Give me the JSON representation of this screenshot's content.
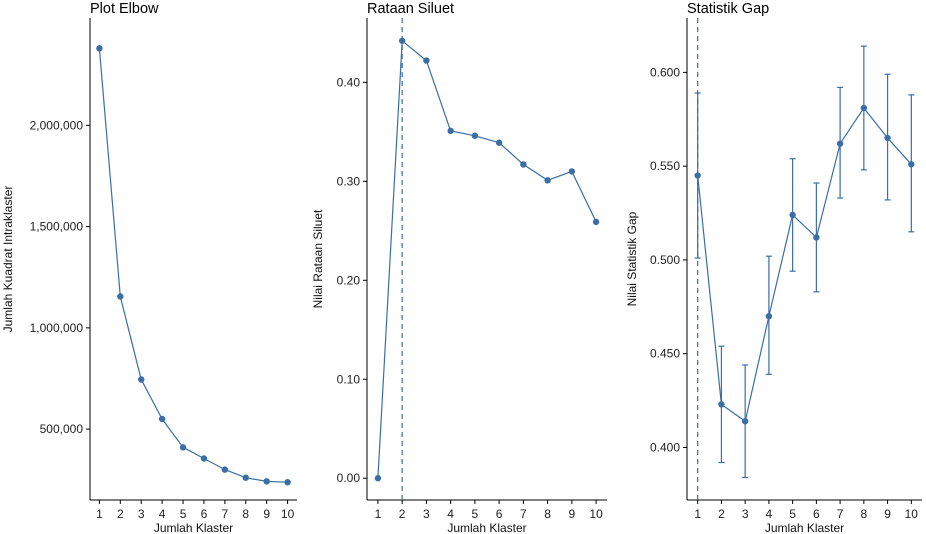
{
  "colors": {
    "series": "#3a6ea5",
    "axis": "#000000",
    "background": "#ffffff"
  },
  "chart_data": [
    {
      "type": "line",
      "title": "Plot Elbow",
      "xlabel": "Jumlah Klaster",
      "ylabel": "Jumlah Kuadrat Intraklaster",
      "x": [
        1,
        2,
        3,
        4,
        5,
        6,
        7,
        8,
        9,
        10
      ],
      "values": [
        2380000,
        1155000,
        745000,
        550000,
        410000,
        355000,
        300000,
        260000,
        242000,
        238000
      ],
      "xlim": [
        0.55,
        10.45
      ],
      "ylim": [
        150000,
        2530000
      ],
      "xticks": [
        1,
        2,
        3,
        4,
        5,
        6,
        7,
        8,
        9,
        10
      ],
      "xtick_labels": [
        "1",
        "2",
        "3",
        "4",
        "5",
        "6",
        "7",
        "8",
        "9",
        "10"
      ],
      "yticks": [
        500000,
        1000000,
        1500000,
        2000000
      ],
      "ytick_labels": [
        "500,000",
        "1,000,000",
        "1,500,000",
        "2,000,000"
      ],
      "vline": null,
      "error_bars": null,
      "grid": false
    },
    {
      "type": "line",
      "title": "Rataan Siluet",
      "xlabel": "Jumlah Klaster",
      "ylabel": "Nilai Rataan Siluet",
      "x": [
        1,
        2,
        3,
        4,
        5,
        6,
        7,
        8,
        9,
        10
      ],
      "values": [
        0.0,
        0.442,
        0.422,
        0.351,
        0.346,
        0.339,
        0.317,
        0.301,
        0.31,
        0.259
      ],
      "xlim": [
        0.55,
        10.45
      ],
      "ylim": [
        -0.022,
        0.465
      ],
      "xticks": [
        1,
        2,
        3,
        4,
        5,
        6,
        7,
        8,
        9,
        10
      ],
      "xtick_labels": [
        "1",
        "2",
        "3",
        "4",
        "5",
        "6",
        "7",
        "8",
        "9",
        "10"
      ],
      "yticks": [
        0.0,
        0.1,
        0.2,
        0.3,
        0.4
      ],
      "ytick_labels": [
        "0.00",
        "0.10",
        "0.20",
        "0.30",
        "0.40"
      ],
      "vline": 2,
      "error_bars": null,
      "grid": false
    },
    {
      "type": "line",
      "title": "Statistik Gap",
      "xlabel": "Jumlah Klaster",
      "ylabel": "Nilai Statistik Gap",
      "x": [
        1,
        2,
        3,
        4,
        5,
        6,
        7,
        8,
        9,
        10
      ],
      "values": [
        0.545,
        0.423,
        0.414,
        0.47,
        0.524,
        0.512,
        0.562,
        0.581,
        0.565,
        0.551
      ],
      "xlim": [
        0.55,
        10.45
      ],
      "ylim": [
        0.372,
        0.629
      ],
      "xticks": [
        1,
        2,
        3,
        4,
        5,
        6,
        7,
        8,
        9,
        10
      ],
      "xtick_labels": [
        "1",
        "2",
        "3",
        "4",
        "5",
        "6",
        "7",
        "8",
        "9",
        "10"
      ],
      "yticks": [
        0.4,
        0.45,
        0.5,
        0.55,
        0.6
      ],
      "ytick_labels": [
        "0.400",
        "0.450",
        "0.500",
        "0.550",
        "0.600"
      ],
      "vline": 1,
      "error_bars": [
        [
          0.501,
          0.589
        ],
        [
          0.392,
          0.454
        ],
        [
          0.384,
          0.444
        ],
        [
          0.439,
          0.502
        ],
        [
          0.494,
          0.554
        ],
        [
          0.483,
          0.541
        ],
        [
          0.533,
          0.592
        ],
        [
          0.548,
          0.614
        ],
        [
          0.532,
          0.599
        ],
        [
          0.515,
          0.588
        ]
      ],
      "grid": false
    }
  ]
}
